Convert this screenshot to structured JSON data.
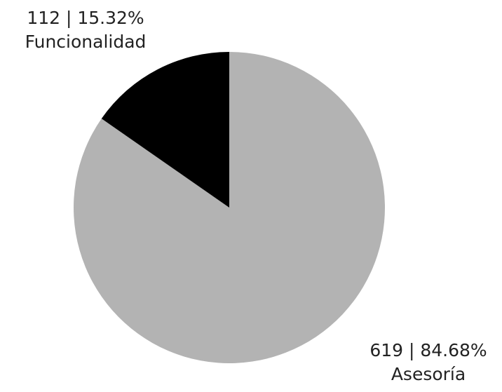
{
  "chart_data": {
    "type": "pie",
    "title": "",
    "slices": [
      {
        "category": "Asesoría",
        "value": 619,
        "percent": 84.68,
        "value_label": "619 | 84.68%",
        "color": "#b3b3b3"
      },
      {
        "category": "Funcionalidad",
        "value": 112,
        "percent": 15.32,
        "value_label": "112 | 15.32%",
        "color": "#000000"
      }
    ],
    "start_angle_deg": 0,
    "direction": "clockwise",
    "legend": "none"
  }
}
